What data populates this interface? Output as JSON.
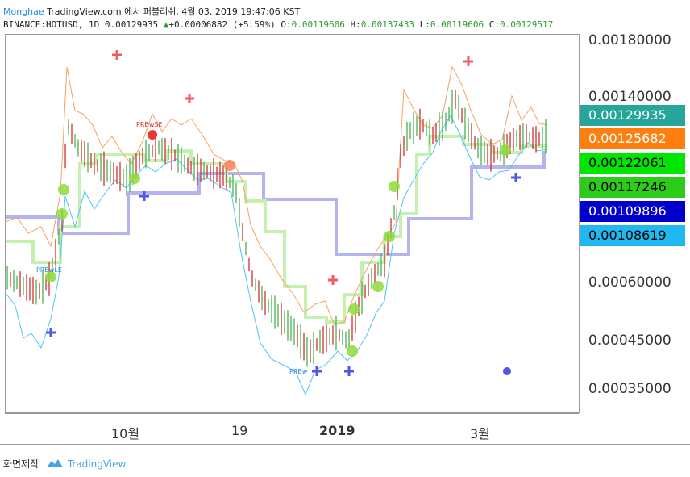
{
  "header": {
    "publisher": "Monghae",
    "publish_line": "TradingView.com 에서 퍼블리쉬, 4월 03, 2019 19:47:06 KST",
    "symbol": "BINANCE:HOTUSD, 1D",
    "last": "0.00129935",
    "change_icon": "up-triangle-icon",
    "change": "+0.00006882 (+5.59%)",
    "o_label": "O:",
    "o": "0.00119606",
    "h_label": "H:",
    "h": "0.00137433",
    "l_label": "L:",
    "l": "0.00119606",
    "c_label": "C:",
    "c": "0.00129517"
  },
  "price_axis": {
    "labels": [
      "0.00180000",
      "0.00140000",
      "0.00060000",
      "0.00045000",
      "0.00035000"
    ]
  },
  "price_tags": [
    {
      "text": "0.00129935",
      "bg": "#26a69a",
      "fg": "#ffffff"
    },
    {
      "text": "0.00125682",
      "bg": "#ff7f0e",
      "fg": "#ffffff"
    },
    {
      "text": "0.00122061",
      "bg": "#00e600",
      "fg": "#000000"
    },
    {
      "text": "0.00117246",
      "bg": "#2ecc1a",
      "fg": "#000000"
    },
    {
      "text": "0.00109896",
      "bg": "#0000cc",
      "fg": "#ffffff"
    },
    {
      "text": "0.00108619",
      "bg": "#1fb8f0",
      "fg": "#000000"
    }
  ],
  "time_axis": {
    "labels": [
      "10월",
      "19",
      "2019",
      "3월"
    ]
  },
  "annotations": {
    "prbwse": "PRBwSE",
    "prbwle": "PRBwLE",
    "prbw": "PRBw"
  },
  "footer": {
    "caption": "화면제작",
    "brand": "TradingView",
    "brand_icon": "tradingview-logo-icon"
  },
  "colors": {
    "up": "#4caf50",
    "down": "#d32f2f",
    "upper_band": "#f4a261",
    "lower_band": "#4fc3f7",
    "slow_line": "#b0b0f0",
    "fast_line": "#b7eb9f",
    "sell_marker": "#f25c5c",
    "buy_marker": "#4f57e8"
  }
}
